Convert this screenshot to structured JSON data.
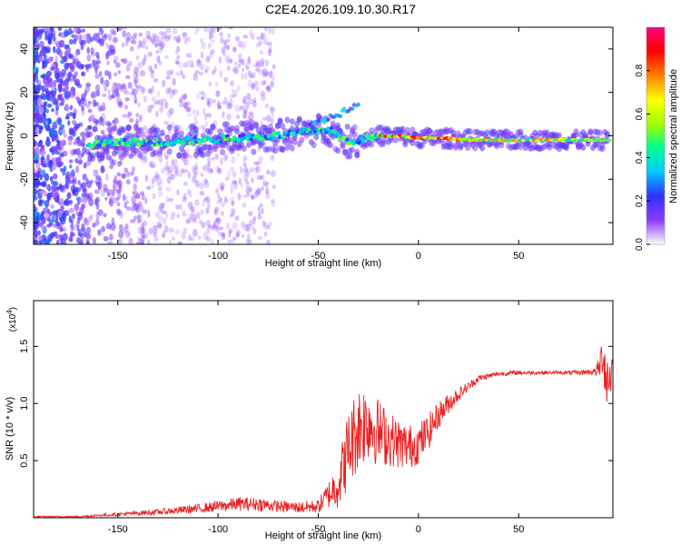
{
  "figure_title": "C2E4.2026.109.10.30.R17",
  "chart_data": [
    {
      "type": "heatmap",
      "title": "C2E4.2026.109.10.30.R17",
      "xlabel": "Height of straight line (km)",
      "ylabel": "Frequency (Hz)",
      "xlim": [
        -192,
        97
      ],
      "ylim": [
        -50,
        50
      ],
      "xticks": [
        -150,
        -100,
        -50,
        0,
        50
      ],
      "yticks": [
        -40,
        -20,
        0,
        20,
        40
      ],
      "colorbar": {
        "label": "Normalized spectral amplitude",
        "range": [
          0.0,
          1.0
        ],
        "ticks": [
          0.0,
          0.2,
          0.4,
          0.6,
          0.8
        ],
        "tick_labels": [
          "0.0",
          "0.2",
          "0.4",
          "0.6",
          "0.8"
        ],
        "colormap": [
          "#ffffff",
          "#8c3cff",
          "#3030ff",
          "#00c8ff",
          "#00ff90",
          "#a0ff00",
          "#ffff00",
          "#ff8000",
          "#ff0000",
          "#ff0080"
        ]
      },
      "ridge": {
        "description": "dominant frequency track",
        "x": [
          -165,
          -150,
          -130,
          -110,
          -90,
          -70,
          -55,
          -45,
          -35,
          -25,
          -20,
          -10,
          0,
          10,
          30,
          50,
          70,
          90,
          95
        ],
        "y": [
          -4,
          -3,
          -3,
          -2,
          -1,
          0,
          2,
          3,
          -3,
          -1,
          0,
          0,
          -1,
          -1,
          -2,
          -2,
          -2,
          -2,
          -2
        ]
      }
    },
    {
      "type": "line",
      "xlabel": "Height of straight line (km)",
      "ylabel": "SNR (10 * v/v)",
      "y_scale_label": "(x10",
      "y_scale_exp": "4",
      "y_scale_suffix": ")",
      "xlim": [
        -192,
        97
      ],
      "ylim": [
        0,
        1.9
      ],
      "xticks": [
        -150,
        -100,
        -50,
        0,
        50
      ],
      "yticks": [
        0.5,
        1.0,
        1.5
      ],
      "ytick_labels": [
        "0.5",
        "1.0",
        "1.5"
      ],
      "series": [
        {
          "name": "SNR",
          "color": "#e82020",
          "x": [
            -192,
            -170,
            -150,
            -130,
            -110,
            -100,
            -90,
            -80,
            -70,
            -60,
            -50,
            -45,
            -40,
            -35,
            -30,
            -25,
            -20,
            -15,
            -10,
            -5,
            0,
            5,
            10,
            15,
            20,
            25,
            30,
            40,
            50,
            60,
            70,
            80,
            88,
            90,
            92,
            94,
            97
          ],
          "y": [
            0.01,
            0.01,
            0.03,
            0.05,
            0.08,
            0.1,
            0.12,
            0.12,
            0.1,
            0.09,
            0.1,
            0.2,
            0.3,
            0.6,
            0.8,
            0.85,
            0.75,
            0.7,
            0.65,
            0.62,
            0.65,
            0.75,
            0.9,
            1.0,
            1.08,
            1.15,
            1.22,
            1.26,
            1.27,
            1.27,
            1.27,
            1.27,
            1.28,
            1.3,
            1.45,
            1.2,
            1.3
          ],
          "noise": [
            0.005,
            0.006,
            0.015,
            0.025,
            0.04,
            0.05,
            0.06,
            0.06,
            0.05,
            0.05,
            0.06,
            0.12,
            0.22,
            0.35,
            0.38,
            0.35,
            0.3,
            0.25,
            0.22,
            0.2,
            0.18,
            0.16,
            0.12,
            0.09,
            0.06,
            0.04,
            0.03,
            0.02,
            0.02,
            0.015,
            0.015,
            0.02,
            0.03,
            0.1,
            0.2,
            0.3,
            0.2
          ]
        }
      ]
    }
  ]
}
